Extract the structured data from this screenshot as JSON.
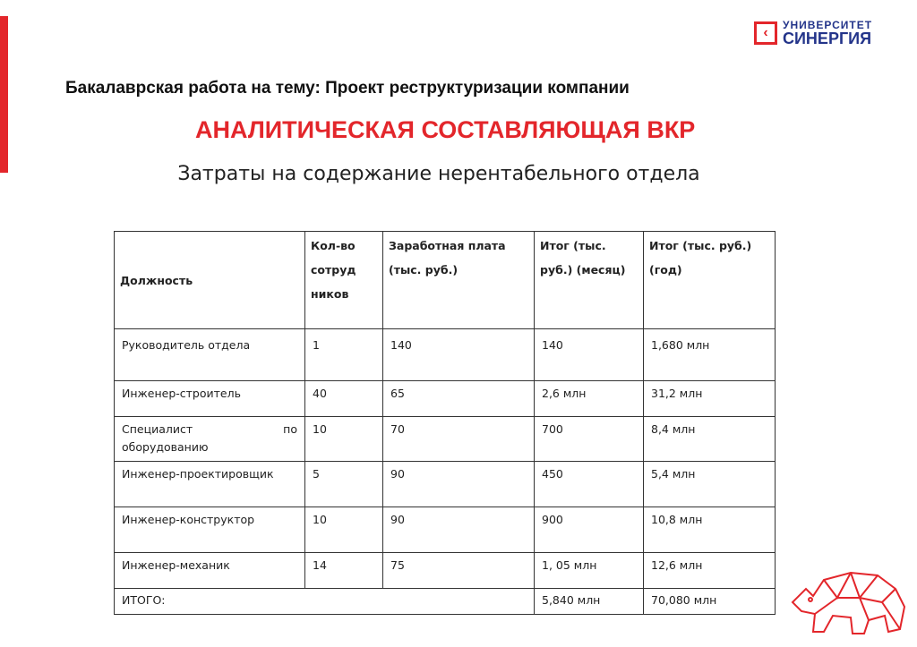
{
  "logo": {
    "line1": "УНИВЕРСИТЕТ",
    "line2": "СИНЕРГИЯ"
  },
  "subtitle": "Бакалаврская работа на тему: Проект реструктуризации компании",
  "heading": "АНАЛИТИЧЕСКАЯ СОСТАВЛЯЮЩАЯ ВКР",
  "table_title": "Затраты на содержание нерентабельного отдела",
  "colors": {
    "accent": "#e3262b",
    "brand": "#23348a"
  },
  "table": {
    "headers": [
      "Должность",
      "Кол-во сотруд ников",
      "Заработная плата (тыс. руб.)",
      "Итог (тыс. руб.) (месяц)",
      "Итог (тыс. руб.) (год)"
    ],
    "rows": [
      [
        "Руководитель отдела",
        "1",
        "140",
        "140",
        "1,680 млн"
      ],
      [
        "Инженер-строитель",
        "40",
        "65",
        "2,6 млн",
        "31,2 млн"
      ],
      [
        "Специалист по оборудованию",
        "10",
        "70",
        "700",
        "8,4 млн"
      ],
      [
        "Инженер-проектировщик",
        "5",
        "90",
        "450",
        "5,4 млн"
      ],
      [
        "Инженер-конструктор",
        "10",
        "90",
        "900",
        "10,8 млн"
      ],
      [
        "Инженер-механик",
        "14",
        "75",
        "1, 05 млн",
        "12,6 млн"
      ]
    ],
    "total": {
      "label": "ИТОГО:",
      "month": "5,840 млн",
      "year": "70,080 млн"
    }
  }
}
